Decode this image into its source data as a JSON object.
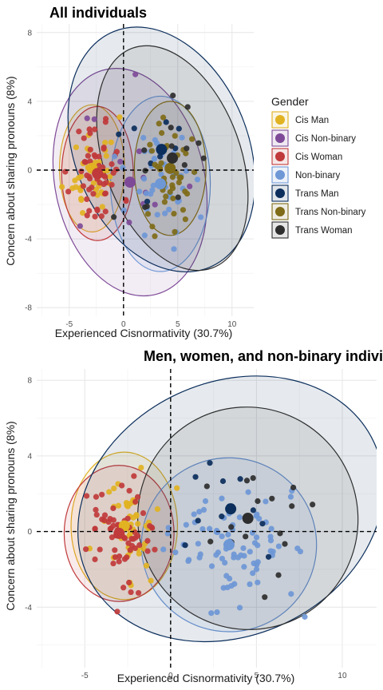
{
  "chart_data": [
    {
      "type": "scatter",
      "title": "All individuals",
      "xlabel": "Experienced Cisnormativity (30.7%)",
      "ylabel": "Concern about sharing pronouns (8%)",
      "xlim": [
        -8,
        12
      ],
      "ylim": [
        -8.5,
        8.5
      ],
      "x_ticks": [
        -5,
        0,
        5,
        10
      ],
      "y_ticks": [
        -8,
        -4,
        0,
        4,
        8
      ],
      "grid": true,
      "reference_lines": {
        "x": 0,
        "y": 0
      },
      "legend": {
        "title": "Gender",
        "position": "right",
        "entries": [
          "Cis Man",
          "Cis Non-binary",
          "Cis Woman",
          "Non-binary",
          "Trans Man",
          "Trans Non-binary",
          "Trans Woman"
        ]
      },
      "groups": [
        {
          "name": "Cis Man",
          "color": "#E1B222",
          "centroid": [
            -2.9,
            0.1
          ],
          "ellipse": {
            "rx": 3.0,
            "ry": 3.7,
            "rotate": 0
          },
          "n_points": 40,
          "spread": [
            1.1,
            1.5
          ]
        },
        {
          "name": "Cis Non-binary",
          "color": "#7E4A98",
          "centroid": [
            0.6,
            -0.7
          ],
          "ellipse": {
            "rx": 6.9,
            "ry": 6.7,
            "rotate": -12
          },
          "n_points": 12,
          "spread": [
            2.3,
            2.3
          ]
        },
        {
          "name": "Cis Woman",
          "color": "#C0393B",
          "centroid": [
            -2.4,
            -0.2
          ],
          "ellipse": {
            "rx": 3.3,
            "ry": 3.9,
            "rotate": 0
          },
          "n_points": 55,
          "spread": [
            1.2,
            1.6
          ]
        },
        {
          "name": "Non-binary",
          "color": "#6E97D6",
          "centroid": [
            3.4,
            -0.8
          ],
          "ellipse": {
            "rx": 4.6,
            "ry": 5.1,
            "rotate": 0
          },
          "n_points": 45,
          "spread": [
            1.5,
            1.8
          ]
        },
        {
          "name": "Trans Man",
          "color": "#0B2E5C",
          "centroid": [
            3.5,
            1.2
          ],
          "ellipse": {
            "rx": 8.0,
            "ry": 7.4,
            "rotate": -22
          },
          "n_points": 8,
          "spread": [
            2.2,
            1.8
          ]
        },
        {
          "name": "Trans Non-binary",
          "color": "#7F6B18",
          "centroid": [
            4.3,
            0.1
          ],
          "ellipse": {
            "rx": 3.3,
            "ry": 3.9,
            "rotate": 0
          },
          "n_points": 45,
          "spread": [
            1.3,
            1.6
          ]
        },
        {
          "name": "Trans Woman",
          "color": "#2E2E2E",
          "centroid": [
            4.5,
            0.7
          ],
          "ellipse": {
            "rx": 6.3,
            "ry": 6.8,
            "rotate": -20
          },
          "n_points": 14,
          "spread": [
            2.0,
            2.0
          ]
        }
      ]
    },
    {
      "type": "scatter",
      "title": "Men, women, and non-binary individ",
      "xlabel": "Experienced Cisnormativity (30.7%)",
      "ylabel": "Concern about sharing pronouns (8%)",
      "xlim": [
        -7.8,
        12
      ],
      "ylim": [
        -7.2,
        8.6
      ],
      "x_ticks": [
        -5,
        0,
        5,
        10
      ],
      "y_ticks": [
        -4,
        0,
        4,
        8
      ],
      "grid": true,
      "reference_lines": {
        "x": 0,
        "y": 0
      },
      "groups": [
        {
          "name": "Cis Man",
          "color": "#E1B222",
          "centroid": [
            -2.7,
            0.3
          ],
          "ellipse": {
            "rx": 3.1,
            "ry": 3.9,
            "rotate": 0
          },
          "n_points": 50,
          "spread": [
            1.0,
            1.5
          ]
        },
        {
          "name": "Cis Woman",
          "color": "#C0393B",
          "centroid": [
            -3.0,
            -0.1
          ],
          "ellipse": {
            "rx": 3.2,
            "ry": 3.6,
            "rotate": 0
          },
          "n_points": 70,
          "spread": [
            1.1,
            1.4
          ]
        },
        {
          "name": "Non-binary",
          "color": "#6E97D6",
          "centroid": [
            3.4,
            -0.7
          ],
          "ellipse": {
            "rx": 5.1,
            "ry": 4.6,
            "rotate": 0
          },
          "n_points": 85,
          "spread": [
            1.8,
            1.6
          ]
        },
        {
          "name": "Trans Man",
          "color": "#0B2E5C",
          "centroid": [
            3.5,
            1.2
          ],
          "ellipse": {
            "rx": 9.2,
            "ry": 6.7,
            "rotate": -25
          },
          "n_points": 10,
          "spread": [
            2.1,
            1.7
          ]
        },
        {
          "name": "Trans Woman",
          "color": "#2E2E2E",
          "centroid": [
            4.5,
            0.7
          ],
          "ellipse": {
            "rx": 6.4,
            "ry": 5.9,
            "rotate": -25
          },
          "n_points": 16,
          "spread": [
            2.0,
            1.8
          ]
        }
      ]
    }
  ]
}
